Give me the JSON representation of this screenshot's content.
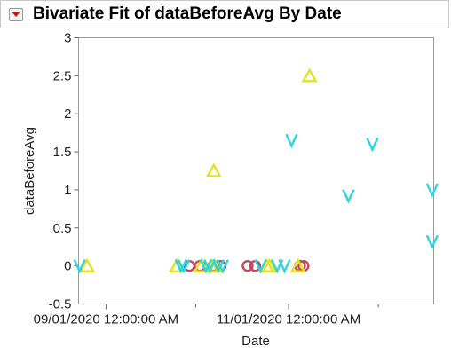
{
  "report": {
    "title": "Bivariate Fit of dataBeforeAvg By Date",
    "disclosure_icon": "disclosure-triangle-down-icon"
  },
  "colors": {
    "circle": "#c9465f",
    "triangle": "#e3e31f",
    "chevron": "#2ad6df",
    "frame": "#9a9a9a",
    "header_border": "#c9c9c9",
    "disclosure_red": "#cc1111"
  },
  "chart_data": {
    "type": "scatter",
    "xlabel": "Date",
    "ylabel": "dataBeforeAvg",
    "ylim": [
      -0.5,
      3
    ],
    "xlim": [
      "2020-08-22 20:00",
      "2020-12-19 12:00"
    ],
    "y_ticks": [
      "3",
      "2.5",
      "2",
      "1.5",
      "1",
      "0.5",
      "0",
      "-0.5"
    ],
    "x_ticks": [
      {
        "label": "09/01/2020 12:00:00 AM",
        "date": "2020-09-01 00:00"
      },
      {
        "label": "11/01/2020 12:00:00 AM",
        "date": "2020-11-01 00:00"
      }
    ],
    "x_minor_ticks": [
      "2020-10-01 00:00",
      "2020-12-01 00:00"
    ],
    "grid": false,
    "legend": "none",
    "series": [
      {
        "marker": "circle",
        "color": "#c9465f",
        "points": [
          {
            "x": "2020-09-28 20:00",
            "y": 0
          },
          {
            "x": "2020-10-02 08:00",
            "y": 0
          },
          {
            "x": "2020-10-06 20:00",
            "y": 0
          },
          {
            "x": "2020-10-09 08:00",
            "y": 0
          },
          {
            "x": "2020-10-18 08:00",
            "y": 0
          },
          {
            "x": "2020-10-20 20:00",
            "y": 0
          },
          {
            "x": "2020-11-04 20:00",
            "y": 0
          },
          {
            "x": "2020-11-06 00:00",
            "y": 0
          }
        ]
      },
      {
        "marker": "triangle",
        "color": "#e3e31f",
        "points": [
          {
            "x": "2020-08-25 16:00",
            "y": 0
          },
          {
            "x": "2020-09-24 16:00",
            "y": 0
          },
          {
            "x": "2020-10-02 20:00",
            "y": 0
          },
          {
            "x": "2020-10-06 04:00",
            "y": 0
          },
          {
            "x": "2020-10-07 00:00",
            "y": 1.25
          },
          {
            "x": "2020-10-07 04:00",
            "y": 0
          },
          {
            "x": "2020-10-24 16:00",
            "y": 0
          },
          {
            "x": "2020-10-25 16:00",
            "y": 0
          },
          {
            "x": "2020-11-04 04:00",
            "y": 0
          },
          {
            "x": "2020-11-08 00:00",
            "y": 2.5
          }
        ]
      },
      {
        "marker": "chevron",
        "color": "#2ad6df",
        "points": [
          {
            "x": "2020-08-23 04:00",
            "y": 0
          },
          {
            "x": "2020-09-26 00:00",
            "y": 0
          },
          {
            "x": "2020-09-27 00:00",
            "y": 0
          },
          {
            "x": "2020-10-04 08:00",
            "y": 0
          },
          {
            "x": "2020-10-05 16:00",
            "y": 0
          },
          {
            "x": "2020-10-08 12:00",
            "y": 0
          },
          {
            "x": "2020-10-10 00:00",
            "y": 0
          },
          {
            "x": "2020-10-22 16:00",
            "y": 0
          },
          {
            "x": "2020-10-28 04:00",
            "y": 0
          },
          {
            "x": "2020-10-30 16:00",
            "y": 0
          },
          {
            "x": "2020-11-02 00:00",
            "y": 1.65
          },
          {
            "x": "2020-11-21 00:00",
            "y": 0.92
          },
          {
            "x": "2020-11-29 00:00",
            "y": 1.6
          },
          {
            "x": "2020-12-19 00:00",
            "y": 1.0
          },
          {
            "x": "2020-12-19 00:00",
            "y": 0.32
          }
        ]
      }
    ]
  }
}
